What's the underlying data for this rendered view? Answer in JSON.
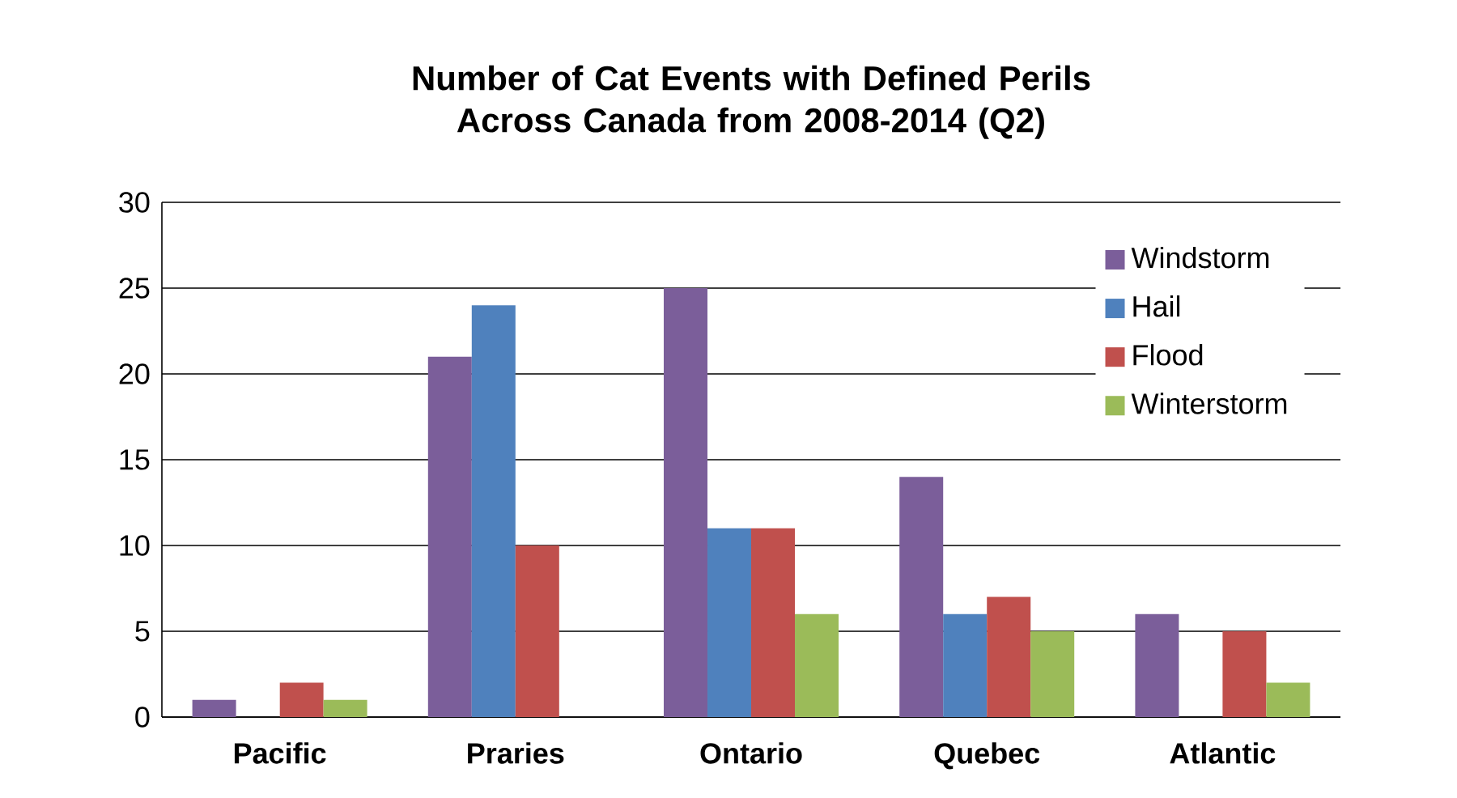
{
  "chart_data": {
    "type": "bar",
    "title": "Number of Cat Events with Defined Perils Across Canada from 2008-2014 (Q2)",
    "categories": [
      "Pacific",
      "Praries",
      "Ontario",
      "Quebec",
      "Atlantic"
    ],
    "series": [
      {
        "name": "Windstorm",
        "color": "#7b5e9a",
        "values": [
          1,
          21,
          25,
          14,
          6
        ]
      },
      {
        "name": "Hail",
        "color": "#4f81bd",
        "values": [
          0,
          24,
          11,
          6,
          0
        ]
      },
      {
        "name": "Flood",
        "color": "#c0504d",
        "values": [
          2,
          10,
          11,
          7,
          5
        ]
      },
      {
        "name": "Winterstorm",
        "color": "#9bbb59",
        "values": [
          1,
          0,
          6,
          5,
          2
        ]
      }
    ],
    "ylim": [
      0,
      30
    ],
    "yticks": [
      0,
      5,
      10,
      15,
      20,
      25,
      30
    ],
    "grid": "y",
    "legend": "top right"
  }
}
